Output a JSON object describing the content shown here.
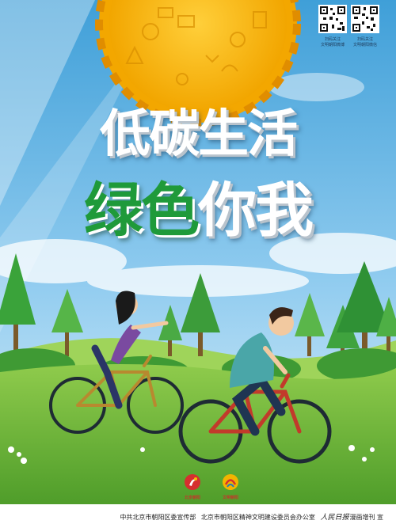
{
  "colors": {
    "sky_top": "#4aa8dd",
    "sky_bottom": "#d9eef8",
    "sun": "#f5b400",
    "grass": "#6fb83a",
    "title_green": "#1f9a3a",
    "bike_frame": "#c23a2b"
  },
  "qr_codes": [
    {
      "caption": "扫码关注\n文明朝阳微博"
    },
    {
      "caption": "扫码关注\n文明朝阳微信"
    }
  ],
  "title": {
    "line1_part1": "低碳",
    "line1_part2": "生活",
    "line2_part1": "绿色",
    "line2_part2": "你我"
  },
  "logos": {
    "logo1_text": "北京朝阳",
    "logo2_text": "文明朝阳"
  },
  "footer": {
    "org1": "中共北京市朝阳区委宣传部",
    "org2": "北京市朝阳区精神文明建设委员会办公室",
    "publisher_signature": "人民日报",
    "publisher_suffix": "漫画增刊 宣"
  }
}
